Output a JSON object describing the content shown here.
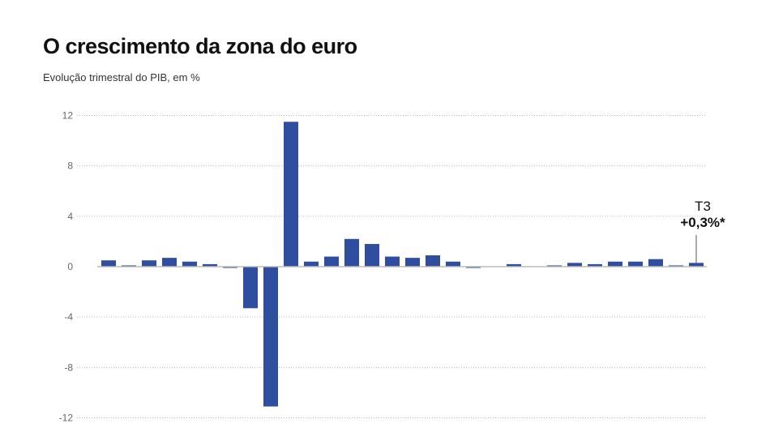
{
  "chart_data": {
    "type": "bar",
    "title": "O crescimento da zona do euro",
    "subtitle": "Evolução trimestral do PIB, em %",
    "ylim": [
      -12,
      12
    ],
    "yticks": [
      12,
      8,
      4,
      0,
      -4,
      -8,
      -12
    ],
    "ytick_labels": [
      "12",
      "8",
      "4",
      "0",
      "-4",
      "-8",
      "-12"
    ],
    "grid": true,
    "color": "#2f4ea0",
    "values": [
      0.5,
      0.1,
      0.5,
      0.7,
      0.4,
      0.2,
      -0.1,
      -3.3,
      -11.1,
      11.5,
      0.4,
      0.8,
      2.2,
      1.8,
      0.8,
      0.7,
      0.9,
      0.4,
      -0.1,
      0.0,
      0.2,
      0.0,
      0.1,
      0.3,
      0.2,
      0.4,
      0.4,
      0.6,
      0.1,
      0.3
    ],
    "annotation": {
      "period": "T3",
      "value": "+0,3%*"
    }
  }
}
